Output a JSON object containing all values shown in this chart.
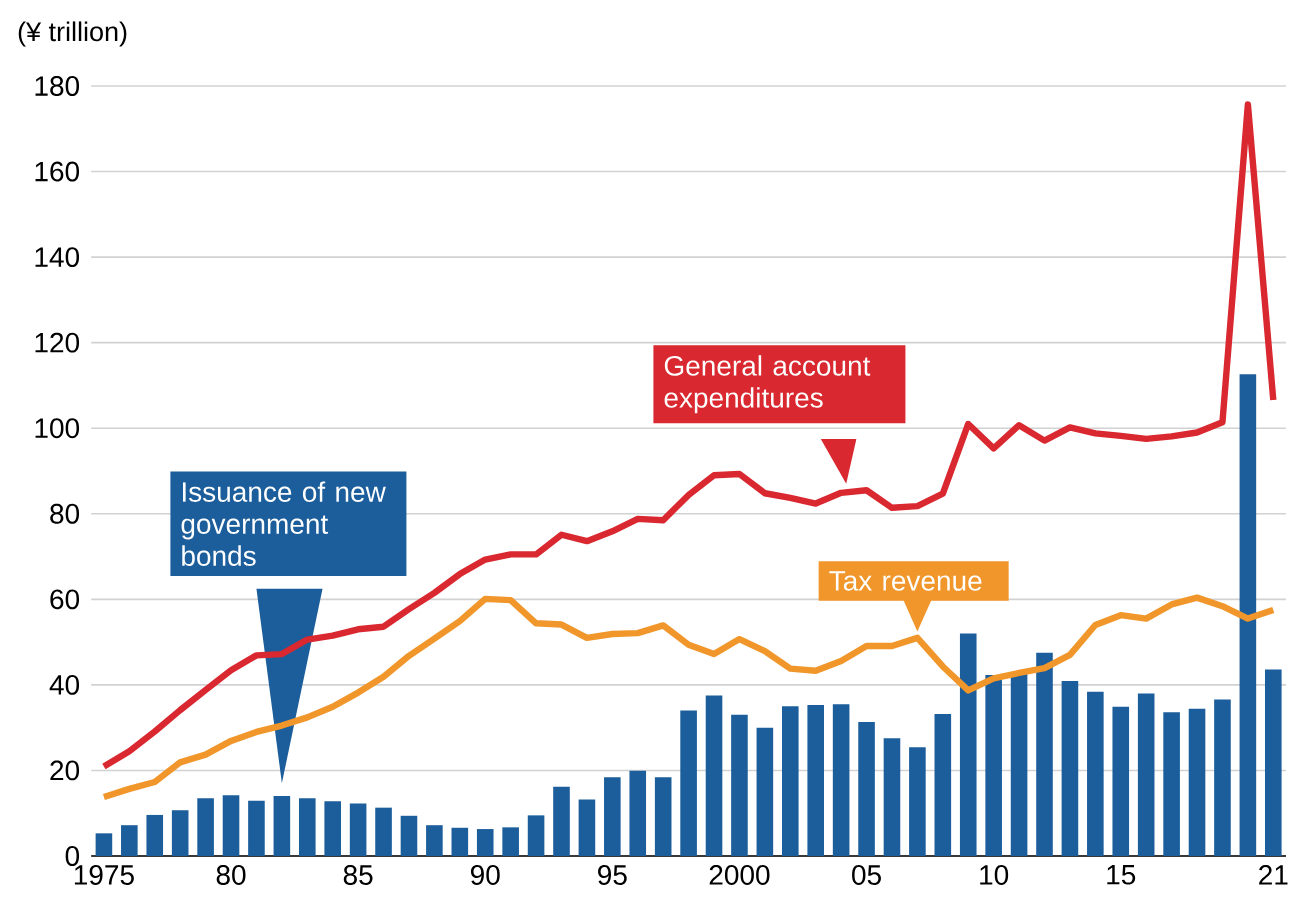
{
  "chart_data": {
    "type": "line",
    "ylabel": "(¥ trillion)",
    "x": [
      1975,
      1976,
      1977,
      1978,
      1979,
      1980,
      1981,
      1982,
      1983,
      1984,
      1985,
      1986,
      1987,
      1988,
      1989,
      1990,
      1991,
      1992,
      1993,
      1994,
      1995,
      1996,
      1997,
      1998,
      1999,
      2000,
      2001,
      2002,
      2003,
      2004,
      2005,
      2006,
      2007,
      2008,
      2009,
      2010,
      2011,
      2012,
      2013,
      2014,
      2015,
      2016,
      2017,
      2018,
      2019,
      2020,
      2021
    ],
    "series": [
      {
        "name": "Issuance of new government bonds",
        "type": "bar",
        "color": "#1b5e9b",
        "values": [
          5.3,
          7.2,
          9.6,
          10.7,
          13.5,
          14.2,
          12.9,
          14.0,
          13.5,
          12.8,
          12.3,
          11.3,
          9.4,
          7.2,
          6.6,
          6.3,
          6.7,
          9.5,
          16.2,
          13.2,
          18.4,
          19.9,
          18.4,
          34.0,
          37.5,
          33.0,
          30.0,
          35.0,
          35.3,
          35.5,
          31.3,
          27.5,
          25.4,
          33.2,
          52.0,
          42.3,
          42.8,
          47.5,
          40.9,
          38.4,
          34.9,
          38.0,
          33.6,
          34.4,
          36.6,
          112.6,
          43.6
        ]
      },
      {
        "name": "General account expenditures",
        "color": "#d9282f",
        "values": [
          20.9,
          24.5,
          29.1,
          34.1,
          38.8,
          43.4,
          46.9,
          47.2,
          50.6,
          51.5,
          53.0,
          53.6,
          57.7,
          61.5,
          65.9,
          69.3,
          70.5,
          70.5,
          75.1,
          73.6,
          75.9,
          78.8,
          78.5,
          84.4,
          89.0,
          89.3,
          84.8,
          83.7,
          82.4,
          84.9,
          85.5,
          81.4,
          81.8,
          84.7,
          101.0,
          95.3,
          100.7,
          97.1,
          100.2,
          98.8,
          98.2,
          97.5,
          98.1,
          99.0,
          101.4,
          175.7,
          106.6
        ]
      },
      {
        "name": "Tax revenue",
        "color": "#f0962a",
        "values": [
          13.8,
          15.7,
          17.3,
          21.9,
          23.7,
          26.9,
          29.0,
          30.5,
          32.4,
          34.9,
          38.2,
          41.9,
          46.8,
          50.8,
          54.9,
          60.1,
          59.8,
          54.4,
          54.1,
          51.0,
          51.9,
          52.1,
          53.9,
          49.4,
          47.2,
          50.7,
          47.9,
          43.8,
          43.3,
          45.6,
          49.1,
          49.1,
          51.0,
          44.3,
          38.7,
          41.5,
          42.8,
          43.9,
          47.0,
          54.0,
          56.3,
          55.5,
          58.8,
          60.4,
          58.4,
          55.5,
          57.5
        ]
      }
    ],
    "xlim": [
      1974.5,
      2021.5
    ],
    "xticks": [
      1975,
      {
        "value": 1980,
        "label": "80"
      },
      {
        "value": 1985,
        "label": "85"
      },
      {
        "value": 1990,
        "label": "90"
      },
      {
        "value": 1995,
        "label": "95"
      },
      2000,
      {
        "value": 2005,
        "label": "05"
      },
      {
        "value": 2010,
        "label": "10"
      },
      {
        "value": 2015,
        "label": "15"
      },
      {
        "value": 2021,
        "label": "21"
      }
    ],
    "ylim": [
      0,
      180
    ],
    "yticks": [
      0,
      20,
      40,
      60,
      80,
      100,
      120,
      140,
      160,
      180
    ],
    "grid": "y",
    "legend": false,
    "marker": "none",
    "line_style": "solid"
  }
}
